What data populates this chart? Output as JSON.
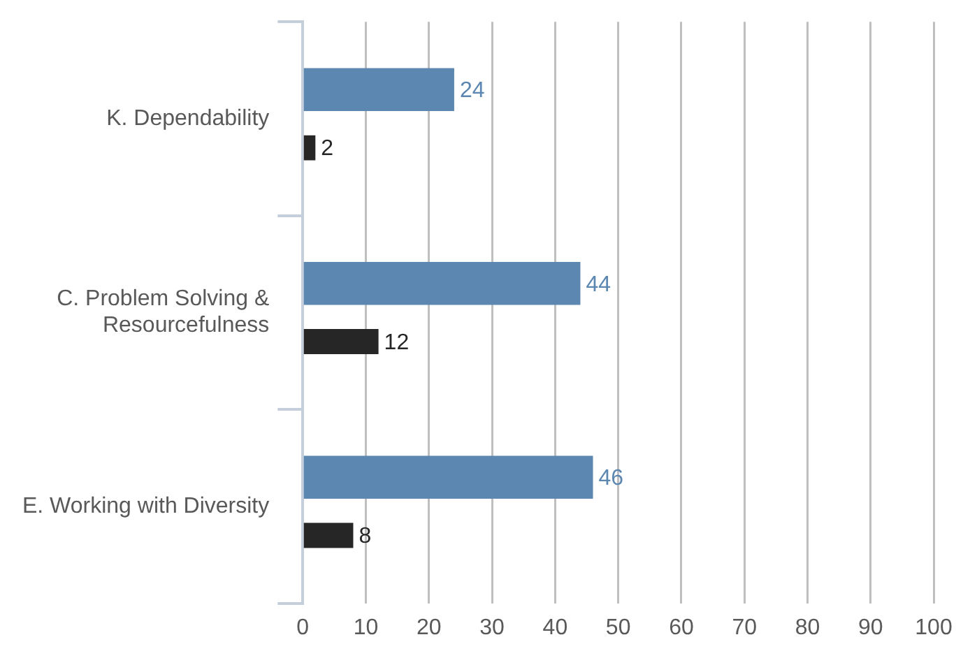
{
  "chart_data": {
    "type": "bar",
    "orientation": "horizontal",
    "categories": [
      "K. Dependability",
      "C. Problem Solving & Resourcefulness",
      "E. Working with Diversity"
    ],
    "series": [
      {
        "color": "#5b87b1",
        "values": [
          24,
          44,
          46
        ]
      },
      {
        "color": "#262626",
        "values": [
          2,
          12,
          8
        ]
      }
    ],
    "xlim": [
      0,
      100
    ],
    "xticks": [
      0,
      10,
      20,
      30,
      40,
      50,
      60,
      70,
      80,
      90,
      100
    ],
    "grid": "x",
    "legend": false,
    "data_labels": true
  }
}
